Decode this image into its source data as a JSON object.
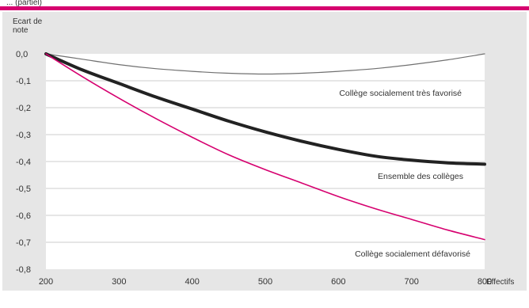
{
  "header_text": "... (partiel)",
  "colors": {
    "accent": "#d6006f",
    "panel_bg": "#e6e6e6",
    "plot_bg": "#ffffff",
    "grid": "#e6e6e6",
    "series_dark": "#222222",
    "series_light": "#707070",
    "series_pink": "#d6006f"
  },
  "chart_data": {
    "type": "line",
    "title": "",
    "ylabel": "Ecart de note",
    "xlabel": "Effectifs",
    "xlim": [
      200,
      800
    ],
    "ylim": [
      -0.8,
      0.0
    ],
    "x_ticks": [
      200,
      300,
      400,
      500,
      600,
      700,
      800
    ],
    "y_ticks": [
      0.0,
      -0.1,
      -0.2,
      -0.3,
      -0.4,
      -0.5,
      -0.6,
      -0.7,
      -0.8
    ],
    "y_tick_labels": [
      "0,0",
      "-0,1",
      "-0,2",
      "-0,3",
      "-0,4",
      "-0,5",
      "-0,6",
      "-0,7",
      "-0,8"
    ],
    "x_tick_labels": [
      "200",
      "300",
      "400",
      "500",
      "600",
      "700",
      "800"
    ],
    "grid": true,
    "series": [
      {
        "name": "Collège socialement très favorisé",
        "color": "#707070",
        "width": 1.2,
        "x": [
          200,
          250,
          300,
          350,
          400,
          450,
          500,
          550,
          600,
          650,
          700,
          750,
          800
        ],
        "y": [
          0.0,
          -0.02,
          -0.04,
          -0.055,
          -0.065,
          -0.072,
          -0.075,
          -0.072,
          -0.065,
          -0.055,
          -0.04,
          -0.022,
          0.0
        ]
      },
      {
        "name": "Ensemble des collèges",
        "color": "#222222",
        "width": 4,
        "x": [
          200,
          250,
          300,
          350,
          400,
          450,
          500,
          550,
          600,
          650,
          700,
          750,
          800
        ],
        "y": [
          0.0,
          -0.06,
          -0.11,
          -0.16,
          -0.205,
          -0.25,
          -0.29,
          -0.325,
          -0.355,
          -0.38,
          -0.395,
          -0.405,
          -0.41
        ]
      },
      {
        "name": "Collège socialement défavorisé",
        "color": "#d6006f",
        "width": 1.6,
        "x": [
          200,
          250,
          300,
          350,
          400,
          450,
          500,
          550,
          600,
          650,
          700,
          750,
          800
        ],
        "y": [
          0.0,
          -0.085,
          -0.165,
          -0.24,
          -0.31,
          -0.375,
          -0.43,
          -0.48,
          -0.53,
          -0.575,
          -0.615,
          -0.655,
          -0.69
        ]
      }
    ]
  }
}
